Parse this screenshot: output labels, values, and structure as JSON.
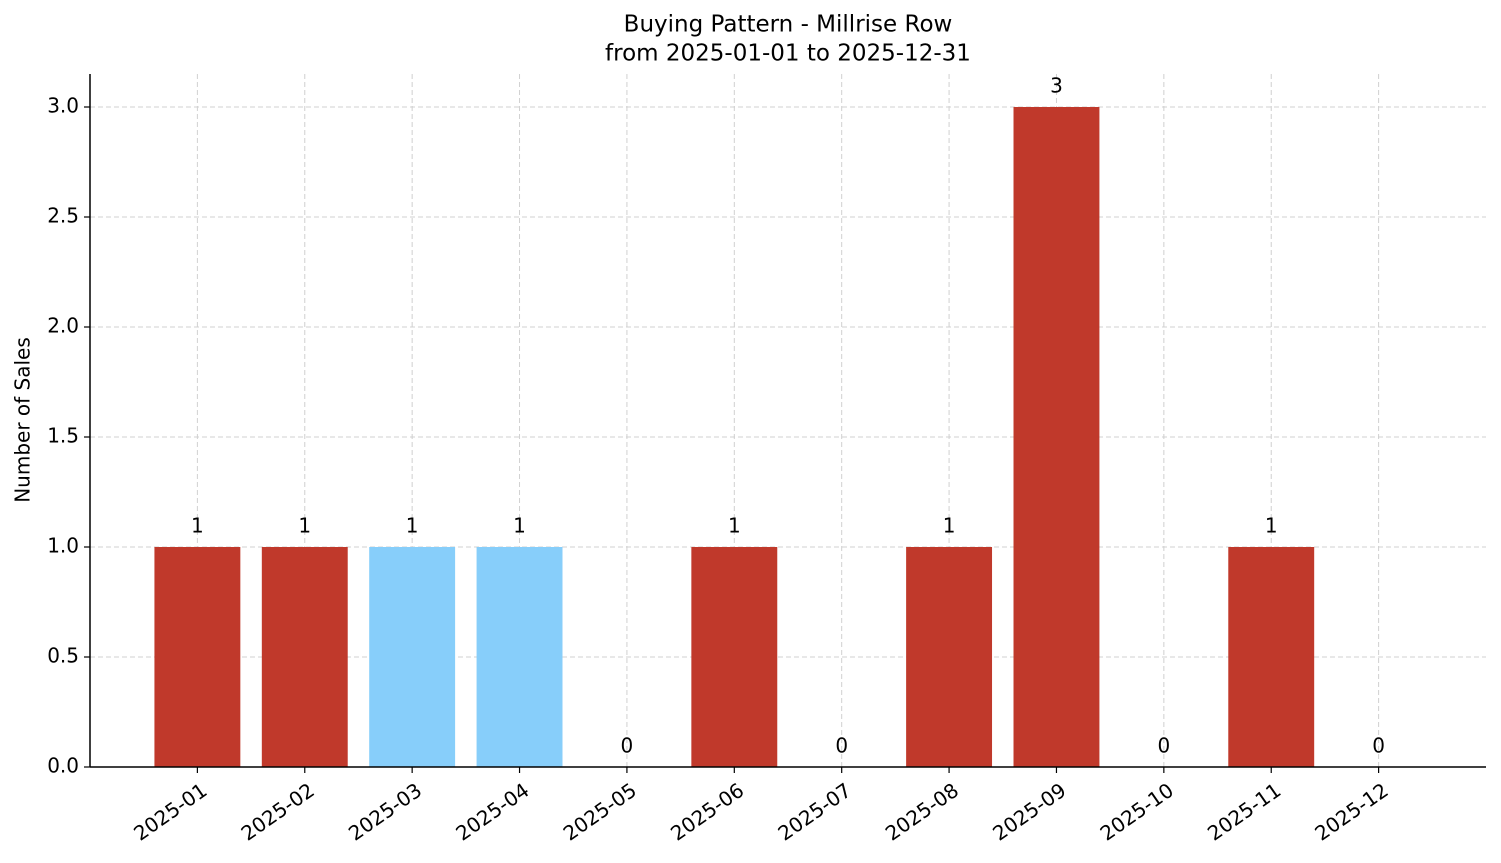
{
  "chart_data": {
    "type": "bar",
    "title": "Buying Pattern - Millrise Row",
    "subtitle": "from 2025-01-01 to 2025-12-31",
    "y_label": "Number of Sales",
    "categories": [
      "2025-01",
      "2025-02",
      "2025-03",
      "2025-04",
      "2025-05",
      "2025-06",
      "2025-07",
      "2025-08",
      "2025-09",
      "2025-10",
      "2025-11",
      "2025-12"
    ],
    "values": [
      1,
      1,
      1,
      1,
      0,
      1,
      0,
      1,
      3,
      0,
      1,
      0
    ],
    "colors": [
      "#c0392b",
      "#c0392b",
      "#87cefa",
      "#87cefa",
      "#c0392b",
      "#c0392b",
      "#c0392b",
      "#c0392b",
      "#c0392b",
      "#c0392b",
      "#c0392b",
      "#c0392b"
    ],
    "ylim": [
      0,
      3.15
    ],
    "yticks": [
      {
        "value": 0,
        "label": "0.0"
      },
      {
        "value": 0.5,
        "label": "0.5"
      },
      {
        "value": 1,
        "label": "1.0"
      },
      {
        "value": 1.5,
        "label": "1.5"
      },
      {
        "value": 2,
        "label": "2.0"
      },
      {
        "value": 2.5,
        "label": "2.5"
      },
      {
        "value": 3,
        "label": "3.0"
      }
    ],
    "grid": true
  }
}
